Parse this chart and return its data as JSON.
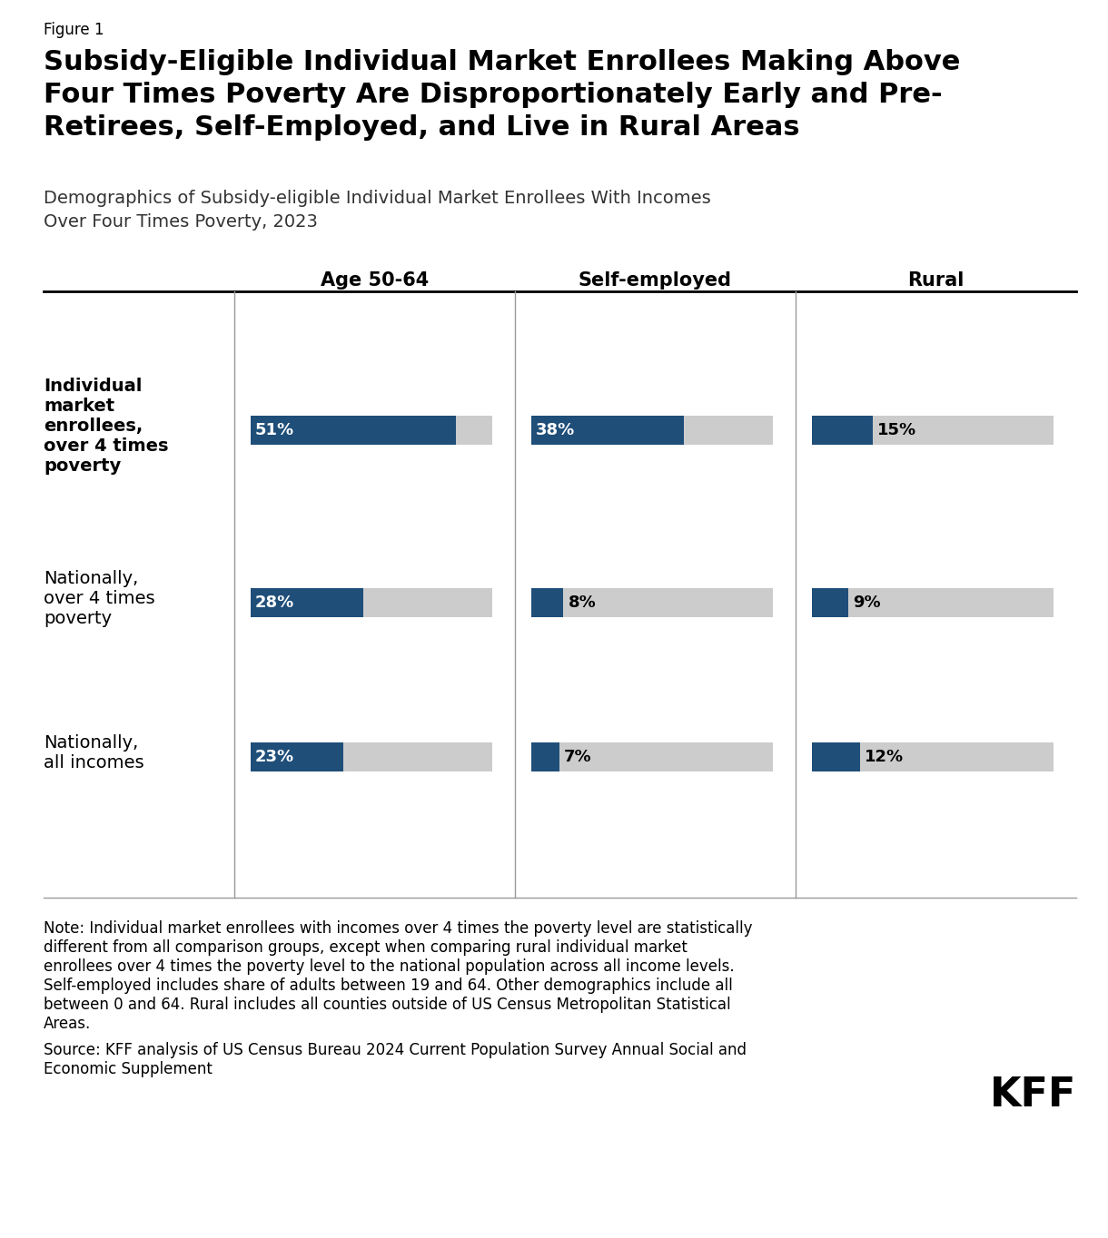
{
  "figure_label": "Figure 1",
  "title": "Subsidy-Eligible Individual Market Enrollees Making Above\nFour Times Poverty Are Disproportionately Early and Pre-\nRetirees, Self-Employed, and Live in Rural Areas",
  "subtitle": "Demographics of Subsidy-eligible Individual Market Enrollees With Incomes\nOver Four Times Poverty, 2023",
  "col_headers": [
    "Age 50-64",
    "Self-employed",
    "Rural"
  ],
  "row_labels": [
    [
      "Individual",
      "market",
      "enrollees,",
      "over 4 times",
      "poverty"
    ],
    [
      "Nationally,",
      "over 4 times",
      "poverty"
    ],
    [
      "Nationally,",
      "all incomes"
    ]
  ],
  "row_bold": [
    true,
    false,
    false
  ],
  "data": [
    [
      51,
      38,
      15
    ],
    [
      28,
      8,
      9
    ],
    [
      23,
      7,
      12
    ]
  ],
  "bar_max": 60,
  "bar_color": "#1f4e79",
  "bg_color": "#cccccc",
  "note_lines": [
    "Note: Individual market enrollees with incomes over 4 times the poverty level are statistically",
    "different from all comparison groups, except when comparing rural individual market",
    "enrollees over 4 times the poverty level to the national population across all income levels.",
    "Self-employed includes share of adults between 19 and 64. Other demographics include all",
    "between 0 and 64. Rural includes all counties outside of US Census Metropolitan Statistical",
    "Areas."
  ],
  "source_lines": [
    "Source: KFF analysis of US Census Bureau 2024 Current Population Survey Annual Social and",
    "Economic Supplement"
  ],
  "title_fontsize": 22,
  "subtitle_fontsize": 14,
  "label_fontsize": 14,
  "header_fontsize": 15,
  "note_fontsize": 12,
  "value_fontsize": 13,
  "fig_label_fontsize": 12
}
